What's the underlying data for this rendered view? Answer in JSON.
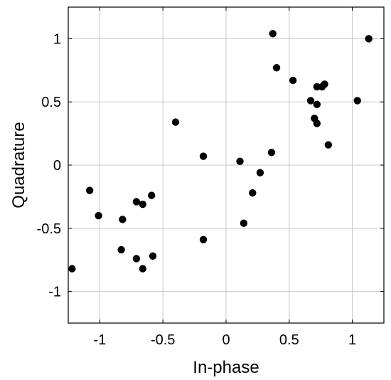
{
  "chart_data": {
    "type": "scatter",
    "title": "",
    "xlabel": "In-phase",
    "ylabel": "Quadrature",
    "xlim": [
      -1.25,
      1.25
    ],
    "ylim": [
      -1.25,
      1.25
    ],
    "xticks": [
      -1,
      -0.5,
      0,
      0.5,
      1
    ],
    "yticks": [
      1,
      0.5,
      0,
      -0.5,
      -1
    ],
    "xtick_labels": [
      "-1",
      "-0.5",
      "0",
      "0.5",
      "1"
    ],
    "ytick_labels": [
      "1",
      "0.5",
      "0",
      "-0.5",
      "-1"
    ],
    "grid": true,
    "marker_color": "#000000",
    "series": [
      {
        "points": [
          {
            "x": 0.37,
            "y": 1.04
          },
          {
            "x": 1.13,
            "y": 1.0
          },
          {
            "x": 0.4,
            "y": 0.77
          },
          {
            "x": 0.53,
            "y": 0.67
          },
          {
            "x": 0.72,
            "y": 0.62
          },
          {
            "x": 0.76,
            "y": 0.62
          },
          {
            "x": 0.78,
            "y": 0.64
          },
          {
            "x": 0.67,
            "y": 0.51
          },
          {
            "x": 0.72,
            "y": 0.48
          },
          {
            "x": 1.04,
            "y": 0.51
          },
          {
            "x": 0.7,
            "y": 0.37
          },
          {
            "x": 0.72,
            "y": 0.33
          },
          {
            "x": -0.4,
            "y": 0.34
          },
          {
            "x": 0.81,
            "y": 0.16
          },
          {
            "x": 0.36,
            "y": 0.1
          },
          {
            "x": -0.18,
            "y": 0.07
          },
          {
            "x": 0.11,
            "y": 0.03
          },
          {
            "x": 0.27,
            "y": -0.06
          },
          {
            "x": 0.21,
            "y": -0.22
          },
          {
            "x": 0.14,
            "y": -0.46
          },
          {
            "x": -1.08,
            "y": -0.2
          },
          {
            "x": -1.01,
            "y": -0.4
          },
          {
            "x": -0.59,
            "y": -0.24
          },
          {
            "x": -0.71,
            "y": -0.29
          },
          {
            "x": -0.66,
            "y": -0.31
          },
          {
            "x": -0.82,
            "y": -0.43
          },
          {
            "x": -0.18,
            "y": -0.59
          },
          {
            "x": -0.83,
            "y": -0.67
          },
          {
            "x": -0.58,
            "y": -0.72
          },
          {
            "x": -0.71,
            "y": -0.74
          },
          {
            "x": -0.66,
            "y": -0.82
          },
          {
            "x": -1.22,
            "y": -0.82
          }
        ]
      }
    ]
  }
}
